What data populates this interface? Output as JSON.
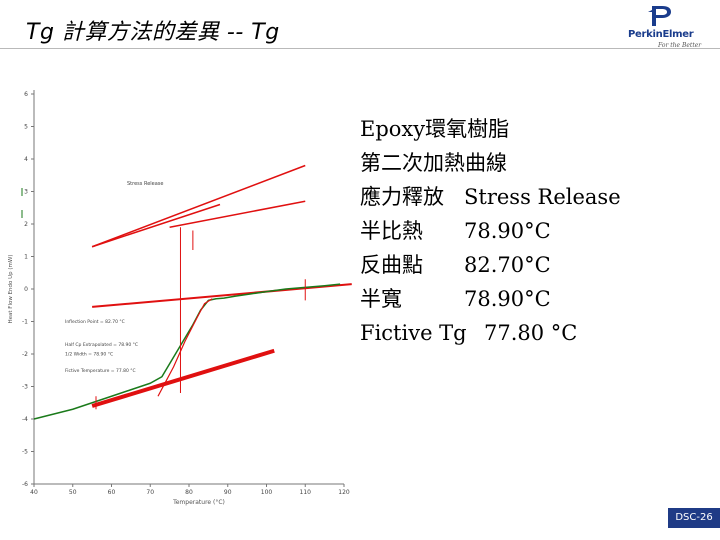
{
  "slide": {
    "title": "Tg 計算方法的差異 -- Tg",
    "page_number": "DSC-26",
    "logo_text": "PerkinElmer",
    "logo_tagline": "For the Better"
  },
  "info": {
    "line1": "Epoxy環氧樹脂",
    "line2": "第二次加熱曲線",
    "rows": [
      {
        "label": "應力釋放",
        "value": "Stress Release"
      },
      {
        "label": "半比熱",
        "value": "78.90°C"
      },
      {
        "label": "反曲點",
        "value": "82.70°C"
      },
      {
        "label": "半寬",
        "value": "78.90°C"
      },
      {
        "label": "Fictive Tg",
        "value": "77.80 °C"
      }
    ]
  },
  "chart_data": {
    "type": "line",
    "ylabel": "Heat Flow Endo Up (mW)",
    "xlabel": "Temperature (°C)",
    "xlim": [
      40,
      120
    ],
    "ylim": [
      -6,
      6
    ],
    "x_ticks": [
      "40",
      "50",
      "60",
      "70",
      "80",
      "90",
      "100",
      "110",
      "120"
    ],
    "y_ticks": [
      "6",
      "5",
      "4",
      "3",
      "2",
      "1",
      "0",
      "-1",
      "-2",
      "-3",
      "-4",
      "-5",
      "-6"
    ],
    "colors": {
      "curve": "#1a7a1a",
      "fit": "#e01010",
      "axis": "#777777"
    },
    "annotations": {
      "stress_label": "Stress Release",
      "inflection": "Inflection Point = 82.70 °C",
      "half_cp": "Half Cp Extrapolated = 78.90 °C",
      "half_width": "1/2 Width = 78.90 °C",
      "fictive": "Fictive Temperature = 77.80 °C"
    },
    "series": [
      {
        "name": "heat-flow",
        "x": [
          40,
          45,
          50,
          55,
          60,
          65,
          70,
          73,
          75,
          77,
          79,
          81,
          83,
          85,
          87,
          89,
          92,
          96,
          100,
          105,
          110,
          115,
          119
        ],
        "y": [
          -4,
          -3.85,
          -3.7,
          -3.5,
          -3.3,
          -3.1,
          -2.9,
          -2.7,
          -2.3,
          -1.9,
          -1.5,
          -1.1,
          -0.65,
          -0.35,
          -0.3,
          -0.28,
          -0.22,
          -0.15,
          -0.08,
          0,
          0.05,
          0.1,
          0.15
        ]
      },
      {
        "name": "glass-baseline",
        "x": [
          55,
          102
        ],
        "y": [
          -3.6,
          -1.9
        ]
      },
      {
        "name": "liquid-baseline",
        "x": [
          55,
          122
        ],
        "y": [
          -0.55,
          0.15
        ]
      },
      {
        "name": "tangent-lower",
        "x": [
          55,
          88
        ],
        "y": [
          1.3,
          2.6
        ]
      },
      {
        "name": "tangent-upper",
        "x": [
          55,
          110
        ],
        "y": [
          1.3,
          3.8
        ]
      },
      {
        "name": "tangent-mid",
        "x": [
          75,
          110
        ],
        "y": [
          1.9,
          2.7
        ]
      }
    ]
  }
}
